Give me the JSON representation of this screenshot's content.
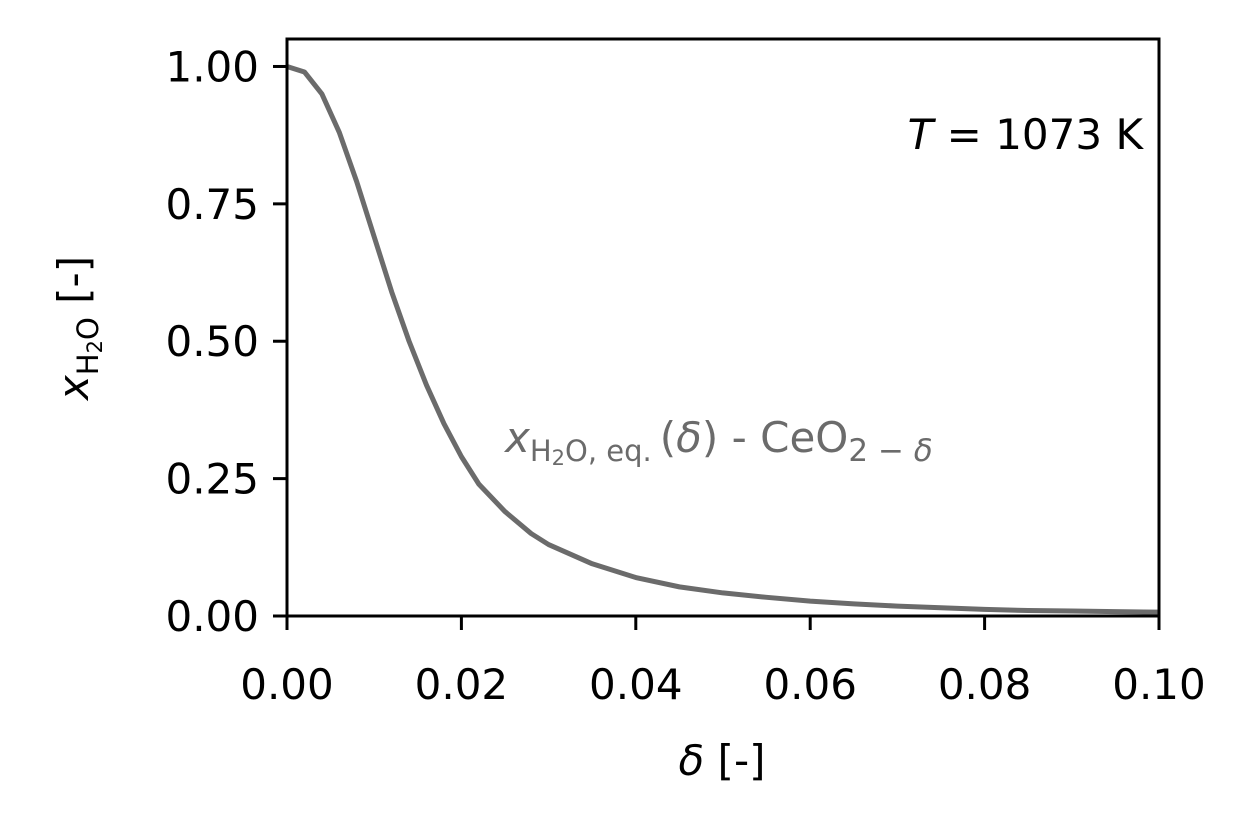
{
  "chart_data": {
    "type": "line",
    "xlabel_symbol": "δ",
    "xlabel_unit": " [-]",
    "ylabel_base": "x",
    "ylabel_sub": "H",
    "ylabel_sub2": "2",
    "ylabel_sub3": "O",
    "ylabel_unit": " [-]",
    "xlim": [
      0.0,
      0.1
    ],
    "ylim": [
      0.0,
      1.05
    ],
    "xticks": [
      0.0,
      0.02,
      0.04,
      0.06,
      0.08,
      0.1
    ],
    "xtick_labels": [
      "0.00",
      "0.02",
      "0.04",
      "0.06",
      "0.08",
      "0.10"
    ],
    "yticks": [
      0.0,
      0.25,
      0.5,
      0.75,
      1.0
    ],
    "ytick_labels": [
      "0.00",
      "0.25",
      "0.50",
      "0.75",
      "1.00"
    ],
    "grid": false,
    "series": [
      {
        "color": "#6b6b6b",
        "x": [
          0.0,
          0.002,
          0.004,
          0.006,
          0.008,
          0.01,
          0.012,
          0.014,
          0.016,
          0.018,
          0.02,
          0.022,
          0.025,
          0.028,
          0.03,
          0.035,
          0.04,
          0.045,
          0.05,
          0.055,
          0.06,
          0.065,
          0.07,
          0.075,
          0.08,
          0.085,
          0.09,
          0.095,
          0.1
        ],
        "y": [
          1.0,
          0.99,
          0.95,
          0.88,
          0.79,
          0.69,
          0.59,
          0.5,
          0.42,
          0.35,
          0.29,
          0.24,
          0.19,
          0.15,
          0.13,
          0.095,
          0.07,
          0.053,
          0.042,
          0.034,
          0.027,
          0.022,
          0.018,
          0.015,
          0.012,
          0.01,
          0.009,
          0.008,
          0.007
        ]
      }
    ],
    "annotation_temperature": {
      "symbol": "T",
      "equals": " = ",
      "value": "1073",
      "unit": " K"
    },
    "annotation_curve": {
      "base": "x",
      "sub_a": "H",
      "sub_b": "2",
      "sub_c": "O, eq.",
      "arg_open": "(",
      "arg_symbol": "δ",
      "arg_close": ")",
      "dash": " - ",
      "formula": "CeO",
      "formula_sub_a": "2",
      "formula_sub_b": " − ",
      "formula_sub_c": "δ",
      "color": "#6b6b6b"
    }
  }
}
